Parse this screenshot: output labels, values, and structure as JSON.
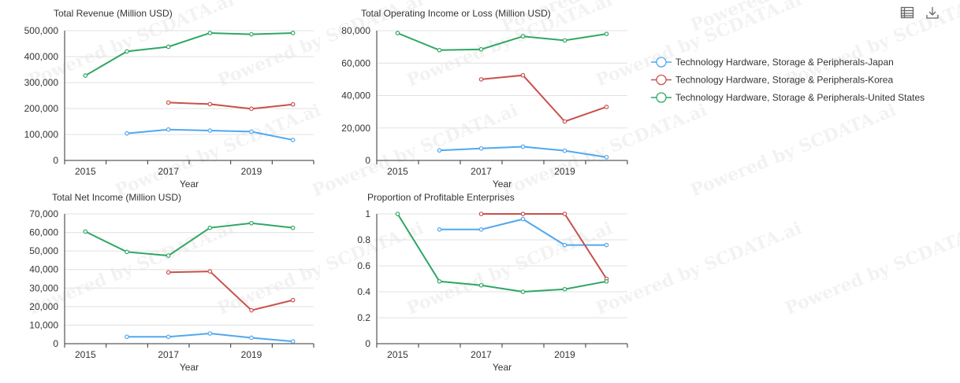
{
  "toolbar": {
    "data_view_icon": "data-view-icon",
    "download_icon": "download-icon"
  },
  "legend": {
    "items": [
      {
        "label": "Technology Hardware, Storage & Peripherals-Japan",
        "color": "#4fa8f0"
      },
      {
        "label": "Technology Hardware, Storage & Peripherals-Korea",
        "color": "#c9504c"
      },
      {
        "label": "Technology Hardware, Storage & Peripherals-United States",
        "color": "#2fa765"
      }
    ]
  },
  "watermark": "Powered by SCDATA.ai",
  "chart_data": [
    {
      "type": "line",
      "title": "Total Revenue (Million USD)",
      "xlabel": "Year",
      "ylabel": "",
      "categories": [
        "2015",
        "2016",
        "2017",
        "2018",
        "2019",
        "2020"
      ],
      "x_tick_labels": [
        "2015",
        "",
        "2017",
        "",
        "2019",
        ""
      ],
      "y_ticks": [
        "0",
        "100,000",
        "200,000",
        "300,000",
        "400,000",
        "500,000"
      ],
      "ylim": [
        0,
        500000
      ],
      "grid": true,
      "series": [
        {
          "name": "Technology Hardware, Storage & Peripherals-Japan",
          "color": "#4fa8f0",
          "values": [
            null,
            104000,
            119000,
            115000,
            111000,
            79000
          ]
        },
        {
          "name": "Technology Hardware, Storage & Peripherals-Korea",
          "color": "#c9504c",
          "values": [
            null,
            null,
            223000,
            217000,
            199000,
            216000
          ]
        },
        {
          "name": "Technology Hardware, Storage & Peripherals-United States",
          "color": "#2fa765",
          "values": [
            327000,
            420000,
            438000,
            491000,
            486000,
            491000
          ]
        }
      ]
    },
    {
      "type": "line",
      "title": "Total Operating Income or Loss (Million USD)",
      "xlabel": "Year",
      "ylabel": "",
      "categories": [
        "2015",
        "2016",
        "2017",
        "2018",
        "2019",
        "2020"
      ],
      "x_tick_labels": [
        "2015",
        "",
        "2017",
        "",
        "2019",
        ""
      ],
      "y_ticks": [
        "0",
        "20,000",
        "40,000",
        "60,000",
        "80,000"
      ],
      "ylim": [
        0,
        80000
      ],
      "grid": true,
      "series": [
        {
          "name": "Technology Hardware, Storage & Peripherals-Japan",
          "color": "#4fa8f0",
          "values": [
            null,
            6200,
            7400,
            8500,
            6000,
            2000
          ]
        },
        {
          "name": "Technology Hardware, Storage & Peripherals-Korea",
          "color": "#c9504c",
          "values": [
            null,
            null,
            50000,
            52500,
            24000,
            33000
          ]
        },
        {
          "name": "Technology Hardware, Storage & Peripherals-United States",
          "color": "#2fa765",
          "values": [
            78500,
            68000,
            68500,
            76500,
            74000,
            78000
          ]
        }
      ]
    },
    {
      "type": "line",
      "title": "Total Net Income (Million USD)",
      "xlabel": "Year",
      "ylabel": "",
      "categories": [
        "2015",
        "2016",
        "2017",
        "2018",
        "2019",
        "2020"
      ],
      "x_tick_labels": [
        "2015",
        "",
        "2017",
        "",
        "2019",
        ""
      ],
      "y_ticks": [
        "0",
        "10,000",
        "20,000",
        "30,000",
        "40,000",
        "50,000",
        "60,000",
        "70,000"
      ],
      "ylim": [
        0,
        70000
      ],
      "grid": true,
      "series": [
        {
          "name": "Technology Hardware, Storage & Peripherals-Japan",
          "color": "#4fa8f0",
          "values": [
            null,
            3700,
            3700,
            5500,
            3200,
            1200
          ]
        },
        {
          "name": "Technology Hardware, Storage & Peripherals-Korea",
          "color": "#c9504c",
          "values": [
            null,
            null,
            38500,
            39000,
            18000,
            23500
          ]
        },
        {
          "name": "Technology Hardware, Storage & Peripherals-United States",
          "color": "#2fa765",
          "values": [
            60500,
            49500,
            47500,
            62500,
            65000,
            62500
          ]
        }
      ]
    },
    {
      "type": "line",
      "title": "Proportion of Profitable Enterprises",
      "xlabel": "Year",
      "ylabel": "",
      "categories": [
        "2015",
        "2016",
        "2017",
        "2018",
        "2019",
        "2020"
      ],
      "x_tick_labels": [
        "2015",
        "",
        "2017",
        "",
        "2019",
        ""
      ],
      "y_ticks": [
        "0",
        "0.2",
        "0.4",
        "0.6",
        "0.8",
        "1"
      ],
      "ylim": [
        0,
        1
      ],
      "grid": true,
      "series": [
        {
          "name": "Technology Hardware, Storage & Peripherals-Japan",
          "color": "#4fa8f0",
          "values": [
            null,
            0.88,
            0.88,
            0.96,
            0.76,
            0.76
          ]
        },
        {
          "name": "Technology Hardware, Storage & Peripherals-Korea",
          "color": "#c9504c",
          "values": [
            null,
            null,
            1.0,
            1.0,
            1.0,
            0.5
          ]
        },
        {
          "name": "Technology Hardware, Storage & Peripherals-United States",
          "color": "#2fa765",
          "values": [
            1.0,
            0.48,
            0.45,
            0.4,
            0.42,
            0.48
          ]
        }
      ]
    }
  ]
}
